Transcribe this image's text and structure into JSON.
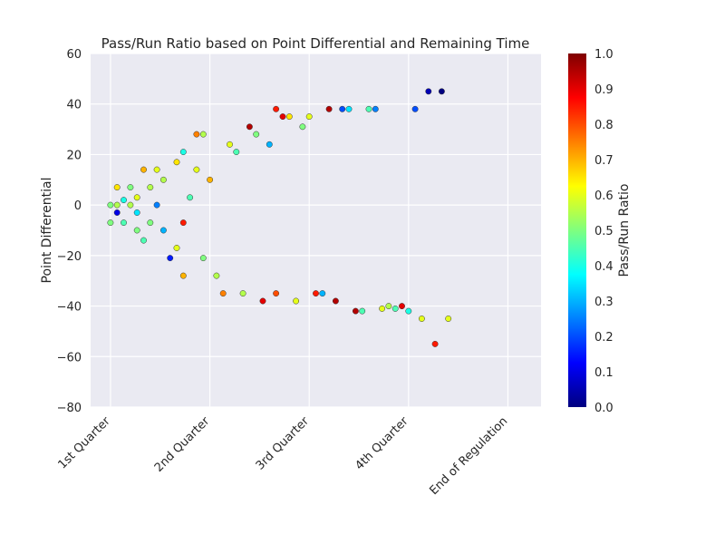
{
  "chart_data": {
    "type": "scatter",
    "title": "Pass/Run Ratio based on Point Differential and Remaining Time",
    "xlabel": "",
    "ylabel": "Point Differential",
    "x_tick_labels": [
      "1st Quarter",
      "2nd Quarter",
      "3rd Quarter",
      "4th Quarter",
      "End of Regulation"
    ],
    "x_tick_values": [
      0,
      15,
      30,
      45,
      60
    ],
    "x_unit": "minutes elapsed",
    "xlim": [
      -3,
      65
    ],
    "ylim": [
      -80,
      60
    ],
    "y_ticks": [
      60,
      40,
      20,
      0,
      -20,
      -40,
      -60,
      -80
    ],
    "y_tick_labels": [
      "60",
      "40",
      "20",
      "0",
      "−20",
      "−40",
      "−60",
      "−80"
    ],
    "colorbar": {
      "label": "Pass/Run Ratio",
      "range": [
        0.0,
        1.0
      ],
      "ticks": [
        "1.0",
        "0.9",
        "0.8",
        "0.7",
        "0.6",
        "0.5",
        "0.4",
        "0.3",
        "0.2",
        "0.1",
        "0.0"
      ],
      "colormap": "jet"
    },
    "grid": true,
    "background": "#eaeaf2",
    "series": [
      {
        "points": [
          [
            0,
            0,
            0.5
          ],
          [
            0,
            -7,
            0.5
          ],
          [
            1,
            7,
            0.65
          ],
          [
            1,
            -3,
            0.1
          ],
          [
            1,
            0,
            0.55
          ],
          [
            2,
            2,
            0.4
          ],
          [
            2,
            -7,
            0.45
          ],
          [
            3,
            7,
            0.5
          ],
          [
            3,
            0,
            0.55
          ],
          [
            4,
            3,
            0.6
          ],
          [
            4,
            -3,
            0.35
          ],
          [
            4,
            -10,
            0.5
          ],
          [
            5,
            14,
            0.7
          ],
          [
            5,
            -14,
            0.45
          ],
          [
            6,
            7,
            0.55
          ],
          [
            6,
            -7,
            0.5
          ],
          [
            7,
            14,
            0.6
          ],
          [
            7,
            0,
            0.25
          ],
          [
            8,
            -10,
            0.3
          ],
          [
            8,
            10,
            0.55
          ],
          [
            9,
            -21,
            0.15
          ],
          [
            10,
            17,
            0.65
          ],
          [
            10,
            -17,
            0.6
          ],
          [
            11,
            21,
            0.4
          ],
          [
            11,
            -28,
            0.7
          ],
          [
            11,
            -7,
            0.85
          ],
          [
            12,
            3,
            0.45
          ],
          [
            13,
            28,
            0.75
          ],
          [
            13,
            14,
            0.6
          ],
          [
            14,
            28,
            0.55
          ],
          [
            14,
            -21,
            0.5
          ],
          [
            15,
            10,
            0.7
          ],
          [
            16,
            -28,
            0.55
          ],
          [
            17,
            -35,
            0.75
          ],
          [
            18,
            24,
            0.6
          ],
          [
            19,
            21,
            0.45
          ],
          [
            20,
            -35,
            0.55
          ],
          [
            21,
            31,
            0.95
          ],
          [
            22,
            28,
            0.5
          ],
          [
            23,
            -38,
            0.9
          ],
          [
            24,
            24,
            0.3
          ],
          [
            25,
            38,
            0.85
          ],
          [
            25,
            -35,
            0.8
          ],
          [
            26,
            35,
            0.9
          ],
          [
            27,
            35,
            0.65
          ],
          [
            28,
            -38,
            0.6
          ],
          [
            29,
            31,
            0.5
          ],
          [
            30,
            35,
            0.6
          ],
          [
            31,
            -35,
            0.85
          ],
          [
            32,
            -35,
            0.3
          ],
          [
            33,
            38,
            0.95
          ],
          [
            34,
            -38,
            0.95
          ],
          [
            35,
            38,
            0.2
          ],
          [
            36,
            38,
            0.35
          ],
          [
            37,
            -42,
            0.95
          ],
          [
            38,
            -42,
            0.45
          ],
          [
            39,
            38,
            0.45
          ],
          [
            40,
            38,
            0.25
          ],
          [
            41,
            -41,
            0.6
          ],
          [
            42,
            -40,
            0.55
          ],
          [
            43,
            -41,
            0.45
          ],
          [
            44,
            -40,
            0.9
          ],
          [
            45,
            -42,
            0.4
          ],
          [
            46,
            38,
            0.2
          ],
          [
            47,
            -45,
            0.6
          ],
          [
            48,
            45,
            0.05
          ],
          [
            49,
            -55,
            0.85
          ],
          [
            50,
            45,
            0.0
          ],
          [
            51,
            -45,
            0.6
          ]
        ]
      }
    ]
  }
}
